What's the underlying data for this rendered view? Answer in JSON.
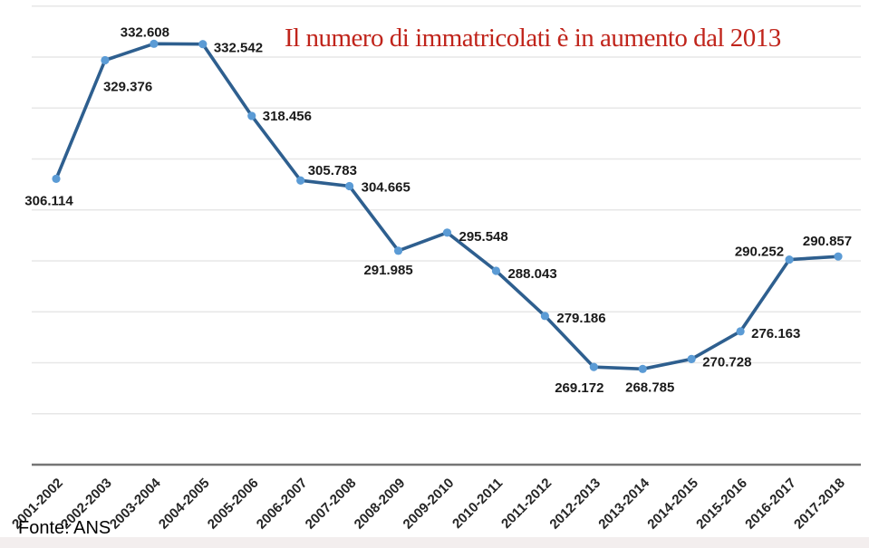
{
  "source_label": "Fonte: ANS",
  "colors": {
    "title": "#C0241B",
    "line": "#2E5F8F",
    "marker": "#5B9BD5",
    "gridline": "#E7E7E7",
    "axis": "#757575",
    "data_label": "#1A1A1A",
    "tick_label": "#262626",
    "bottom_strip": "#F3EEEE",
    "background": "#FFFFFF"
  },
  "chart_data": {
    "type": "line",
    "title": "Il numero di immatricolati è in aumento dal 2013",
    "xlabel": "",
    "ylabel": "",
    "legend": "none",
    "grid": "horizontal",
    "ylim": [
      250000,
      340000
    ],
    "grid_step": 10000,
    "categories": [
      "2001-2002",
      "2002-2003",
      "2003-2004",
      "2004-2005",
      "2005-2006",
      "2006-2007",
      "2007-2008",
      "2008-2009",
      "2009-2010",
      "2010-2011",
      "2011-2012",
      "2012-2013",
      "2013-2014",
      "2014-2015",
      "2015-2016",
      "2016-2017",
      "2017-2018"
    ],
    "values": [
      306114,
      329376,
      332608,
      332542,
      318456,
      305783,
      304665,
      291985,
      295548,
      288043,
      279186,
      269172,
      268785,
      270728,
      276163,
      290252,
      290857
    ],
    "point_labels": [
      "306.114",
      "329.376",
      "332.608",
      "332.542",
      "318.456",
      "305.783",
      "304.665",
      "291.985",
      "295.548",
      "288.043",
      "279.186",
      "269.172",
      "268.785",
      "270.728",
      "276.163",
      "290.252",
      "290.857"
    ]
  }
}
